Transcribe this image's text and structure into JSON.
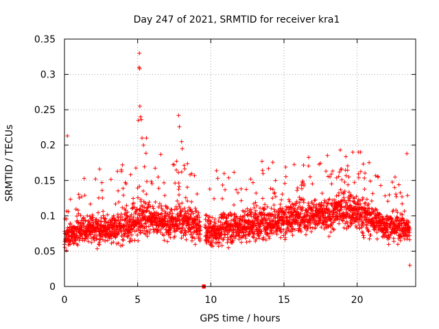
{
  "chart_data": {
    "type": "scatter",
    "title": "Day 247 of 2021, SRMTID for receiver kra1",
    "xlabel": "GPS time / hours",
    "ylabel": "SRMTID / TECUs",
    "xlim": [
      0,
      24
    ],
    "ylim": [
      0,
      0.35
    ],
    "xticks": [
      0,
      5,
      10,
      15,
      20
    ],
    "yticks": [
      0,
      0.05,
      0.1,
      0.15,
      0.2,
      0.25,
      0.3,
      0.35
    ],
    "xtick_labels": [
      "0",
      "5",
      "10",
      "15",
      "20"
    ],
    "ytick_labels": [
      "0",
      "0.05",
      "0.1",
      "0.15",
      "0.2",
      "0.25",
      "0.3",
      "0.35"
    ],
    "grid": true,
    "marker": "+",
    "series_color": "#ff0000",
    "data_gap_hours": [
      9.3,
      9.6
    ],
    "baseline_segment": [
      9.4,
      9.65
    ],
    "envelope": {
      "hours": [
        0,
        1,
        2,
        3,
        4,
        4.8,
        5.3,
        6,
        7,
        8,
        9,
        10,
        11,
        12,
        13,
        14,
        15,
        16,
        17,
        18,
        19,
        20,
        21,
        22,
        23,
        23.6
      ],
      "median": [
        0.065,
        0.08,
        0.08,
        0.08,
        0.085,
        0.09,
        0.1,
        0.095,
        0.09,
        0.095,
        0.085,
        0.075,
        0.085,
        0.085,
        0.09,
        0.09,
        0.095,
        0.1,
        0.1,
        0.1,
        0.11,
        0.105,
        0.095,
        0.085,
        0.085,
        0.08
      ],
      "spread": [
        0.02,
        0.025,
        0.025,
        0.025,
        0.03,
        0.035,
        0.035,
        0.03,
        0.03,
        0.035,
        0.03,
        0.025,
        0.03,
        0.03,
        0.03,
        0.03,
        0.03,
        0.03,
        0.03,
        0.03,
        0.035,
        0.035,
        0.03,
        0.025,
        0.025,
        0.025
      ]
    },
    "peaks": [
      {
        "x": 0.2,
        "y": 0.213
      },
      {
        "x": 2.4,
        "y": 0.166
      },
      {
        "x": 5.05,
        "y": 0.235
      },
      {
        "x": 5.1,
        "y": 0.31
      },
      {
        "x": 5.12,
        "y": 0.33
      },
      {
        "x": 5.14,
        "y": 0.308
      },
      {
        "x": 5.15,
        "y": 0.255
      },
      {
        "x": 5.2,
        "y": 0.24
      },
      {
        "x": 5.25,
        "y": 0.236
      },
      {
        "x": 5.3,
        "y": 0.21
      },
      {
        "x": 5.4,
        "y": 0.2
      },
      {
        "x": 5.6,
        "y": 0.21
      },
      {
        "x": 7.8,
        "y": 0.242
      },
      {
        "x": 7.85,
        "y": 0.226
      },
      {
        "x": 8.0,
        "y": 0.205
      },
      {
        "x": 8.05,
        "y": 0.195
      },
      {
        "x": 13.5,
        "y": 0.177
      },
      {
        "x": 17.4,
        "y": 0.173
      },
      {
        "x": 18.85,
        "y": 0.193
      },
      {
        "x": 19.7,
        "y": 0.19
      },
      {
        "x": 20.1,
        "y": 0.19
      },
      {
        "x": 23.4,
        "y": 0.188
      },
      {
        "x": 23.6,
        "y": 0.03
      }
    ]
  }
}
